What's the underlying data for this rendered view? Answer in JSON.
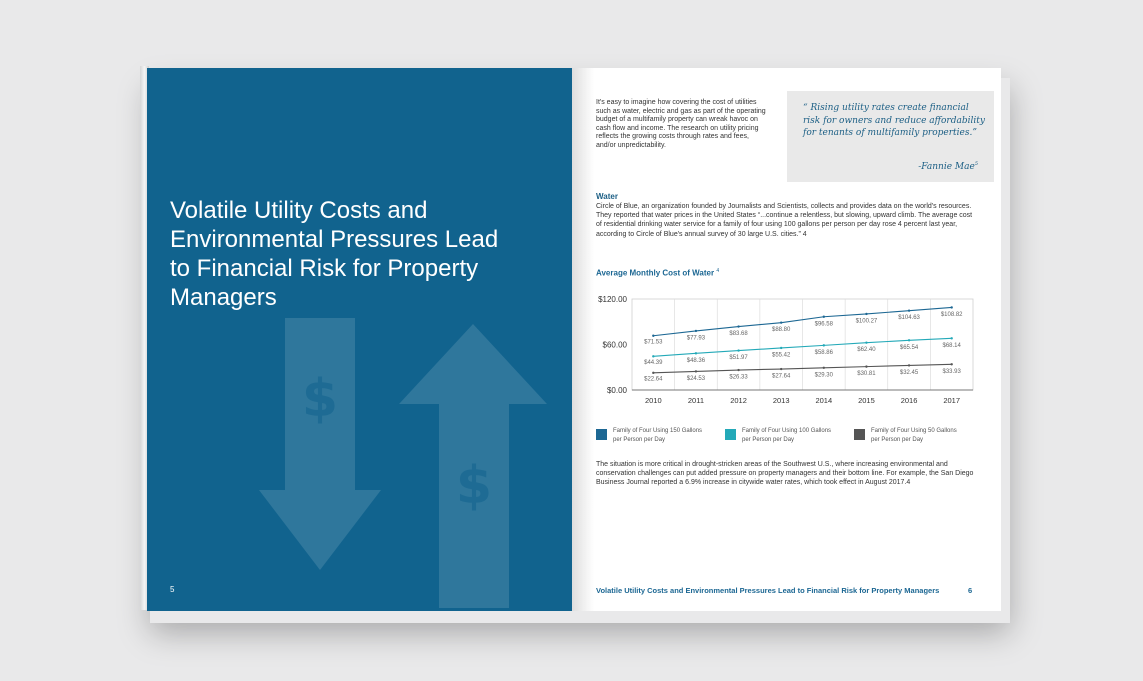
{
  "left_page": {
    "title": "Volatile Utility Costs and Environmental Pressures Lead to Financial Risk for Property Managers",
    "page_number": "5",
    "background_color": "#11638e"
  },
  "right_page": {
    "intro": "It's easy to imagine how covering the cost of utilities such as water, electric and gas as part of the operating budget of a multifamily property can wreak havoc on cash flow and income. The research on utility pricing reflects the growing costs through rates and fees, and/or unpredictability.",
    "quote": {
      "text": "“ Rising utility rates create financial risk for owners and reduce affordability for tenants of multifamily properties.”",
      "attribution": "-Fannie Mae",
      "footnote": "5"
    },
    "water_heading": "Water",
    "water_body": "Circle of Blue, an organization founded by Journalists and Scientists, collects and provides data on the world's resources. They reported that water prices in the United States “...continue a relentless, but slowing, upward climb. The average cost of residential drinking water service for a family of four using 100 gallons per person per day rose 4 percent last year, according to Circle of Blue's annual survey of 30 large U.S. cities.” 4",
    "chart_title": "Average Monthly Cost of Water",
    "chart_title_footnote": "4",
    "closing": "The situation is more critical in drought-stricken areas of the Southwest U.S., where increasing environmental and conservation challenges can put added pressure on property managers and their bottom line. For example, the San Diego Business Journal reported a 6.9% increase in citywide water rates, which took effect in August 2017.4",
    "footer_text": "Volatile Utility Costs and Environmental Pressures Lead to Financial Risk for Property Managers",
    "page_number": "6"
  },
  "chart_data": {
    "type": "line",
    "title": "Average Monthly Cost of Water",
    "x": [
      "2010",
      "2011",
      "2012",
      "2013",
      "2014",
      "2015",
      "2016",
      "2017"
    ],
    "ylim": [
      0,
      120
    ],
    "yticks": [
      "$120.00",
      "$60.00",
      "$0.00"
    ],
    "ytick_values": [
      120,
      60,
      0
    ],
    "grid": "vertical",
    "legend_position": "bottom",
    "series": [
      {
        "name": "Family of Four Using 150 Gallons per Person per Day",
        "color": "#1c6793",
        "values": [
          71.53,
          77.93,
          83.68,
          88.8,
          96.58,
          100.27,
          104.63,
          108.82
        ],
        "labels": [
          "$71.53",
          "$77.93",
          "$83.68",
          "$88.80",
          "$96.58",
          "$100.27",
          "$104.63",
          "$108.82"
        ]
      },
      {
        "name": "Family of Four Using 100 Gallons per Person per Day",
        "color": "#23a9b8",
        "values": [
          44.39,
          48.36,
          51.97,
          55.42,
          58.86,
          62.4,
          65.54,
          68.14
        ],
        "labels": [
          "$44.39",
          "$48.36",
          "$51.97",
          "$55.42",
          "$58.86",
          "$62.40",
          "$65.54",
          "$68.14"
        ]
      },
      {
        "name": "Family of Four Using 50 Gallons per Person per Day",
        "color": "#555555",
        "values": [
          22.64,
          24.53,
          26.33,
          27.64,
          29.3,
          30.81,
          32.45,
          33.93
        ],
        "labels": [
          "$22.64",
          "$24.53",
          "$26.33",
          "$27.64",
          "$29.30",
          "$30.81",
          "$32.45",
          "$33.93"
        ]
      }
    ]
  }
}
